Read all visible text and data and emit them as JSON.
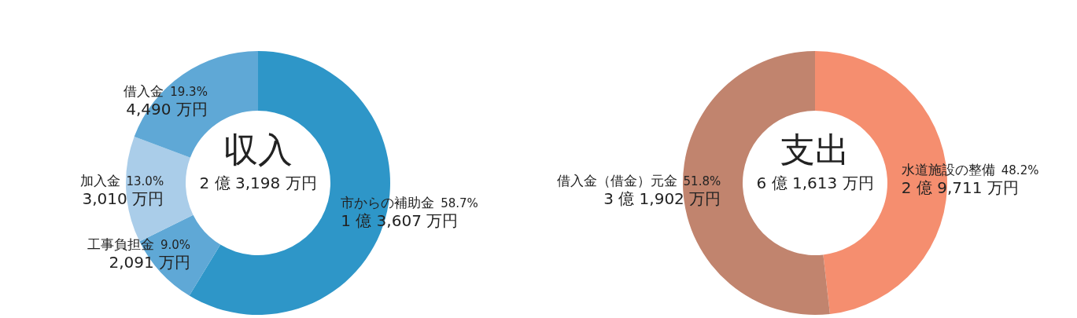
{
  "chart_data": [
    {
      "type": "donut",
      "title": "収入",
      "subtitle": "2 億 3,198 万円",
      "categories": [
        "市からの補助金",
        "工事負担金",
        "加入金",
        "借入金"
      ],
      "values": [
        58.7,
        9.0,
        13.0,
        19.3
      ],
      "colors": [
        "#2e96c8",
        "#5fa8d6",
        "#aacde9",
        "#5fa8d6"
      ],
      "value_labels": [
        "58.7%\n1 億 3,607 万円",
        "9.0%\n2,091 万円",
        "13.0%\n3,010 万円",
        "19.3%\n4,490 万円"
      ],
      "legend": false
    },
    {
      "type": "donut",
      "title": "支出",
      "subtitle": "6 億 1,613 万円",
      "categories": [
        "水道施設の整備",
        "借入金（借金）元金"
      ],
      "values": [
        48.2,
        51.8
      ],
      "colors": [
        "#f58e6f",
        "#c1846e"
      ],
      "value_labels": [
        "48.2%\n2 億 9,711 万円",
        "51.8%\n3 億 1,902 万円"
      ],
      "legend": false
    }
  ]
}
